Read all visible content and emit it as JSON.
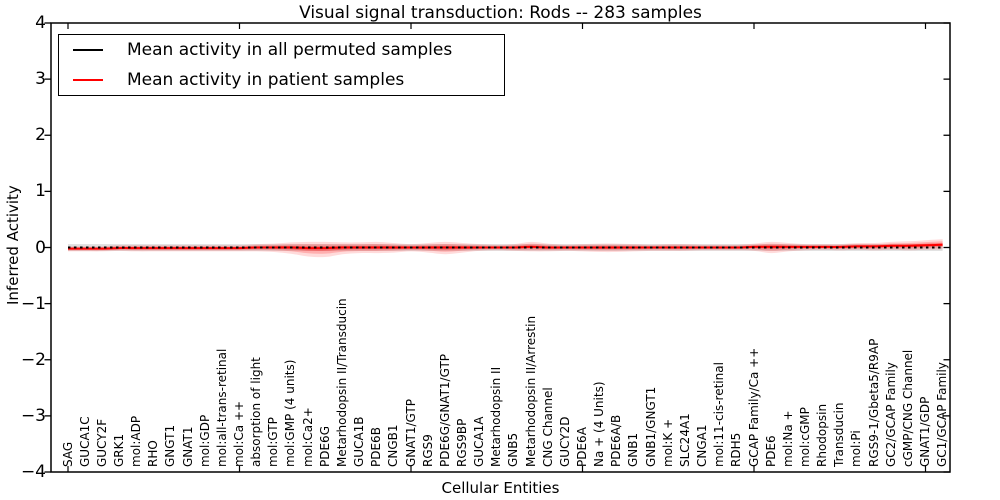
{
  "chart_data": {
    "type": "line",
    "title": "Visual signal transduction: Rods -- 283 samples",
    "xlabel": "Cellular Entities",
    "ylabel": "Inferred Activity",
    "ylim": [
      -4,
      4
    ],
    "yticks": [
      4,
      3,
      2,
      1,
      0,
      -1,
      -2,
      -3,
      -4
    ],
    "ytick_labels": [
      "4",
      "3",
      "2",
      "1",
      "0",
      "−1",
      "−2",
      "−3",
      "−4"
    ],
    "grid": false,
    "legend_position": "upper left",
    "categories": [
      "SAG",
      "GUCA1C",
      "GUCY2F",
      "GRK1",
      "mol:ADP",
      "RHO",
      "GNGT1",
      "GNAT1",
      "mol:GDP",
      "mol:all-trans-retinal",
      "mol:Ca ++",
      "absorption of light",
      "mol:GTP",
      "mol:GMP (4 units)",
      "mol:Ca2+",
      "PDE6G",
      "Metarhodopsin II/Transducin",
      "GUCA1B",
      "PDE6B",
      "CNGB1",
      "GNAT1/GTP",
      "RGS9",
      "PDE6G/GNAT1/GTP",
      "RGS9BP",
      "GUCA1A",
      "Metarhodopsin II",
      "GNB5",
      "Metarhodopsin II/Arrestin",
      "CNG Channel",
      "GUCY2D",
      "PDE6A",
      "Na + (4 Units)",
      "PDE6A/B",
      "GNB1",
      "GNB1/GNGT1",
      "mol:K +",
      "SLC24A1",
      "CNGA1",
      "mol:11-cis-retinal",
      "RDH5",
      "GCAP Family/Ca ++",
      "PDE6",
      "mol:Na +",
      "mol:cGMP",
      "Rhodopsin",
      "Transducin",
      "mol:Pi",
      "RGS9-1/Gbeta5/R9AP",
      "GC2/GCAP Family",
      "cGMP/CNG Channel",
      "GNAT1/GDP",
      "GC1/GCAP Family"
    ],
    "series": [
      {
        "name": "Mean activity in all permuted samples",
        "color": "#000000",
        "band_color": "#000000",
        "band_opacity": 0.13,
        "spread": 0.06,
        "values": [
          0,
          0,
          0,
          0,
          0,
          0,
          0,
          0,
          0,
          0,
          0,
          0,
          0,
          0,
          0,
          0,
          0,
          0,
          0,
          0,
          0,
          0,
          0,
          0,
          0,
          0,
          0,
          0,
          0,
          0,
          0,
          0,
          0,
          0,
          0,
          0,
          0,
          0,
          0,
          0,
          0,
          0,
          0,
          0,
          0,
          0,
          0,
          0,
          0,
          0,
          0,
          0
        ]
      },
      {
        "name": "Mean activity in patient samples",
        "color": "#ff0000",
        "band_color": "#ff0000",
        "band_opacities": [
          0.14,
          0.2,
          0.3
        ],
        "band_scales": [
          1,
          0.62,
          0.32
        ],
        "values": [
          -0.02,
          -0.02,
          -0.02,
          -0.01,
          -0.01,
          -0.01,
          -0.01,
          -0.01,
          -0.01,
          -0.01,
          -0.01,
          0,
          0,
          0,
          -0.01,
          -0.01,
          0,
          0,
          0,
          0,
          0,
          0,
          0,
          0,
          0,
          0,
          0,
          0.01,
          0,
          0,
          0,
          0,
          0,
          0,
          0,
          0,
          0,
          0,
          0,
          0,
          0.01,
          0.01,
          0.01,
          0.01,
          0.01,
          0.01,
          0.02,
          0.02,
          0.03,
          0.03,
          0.04,
          0.05
        ],
        "spread_upper": [
          0.04,
          0.04,
          0.04,
          0.05,
          0.05,
          0.05,
          0.05,
          0.05,
          0.05,
          0.05,
          0.05,
          0.06,
          0.07,
          0.09,
          0.11,
          0.11,
          0.09,
          0.09,
          0.1,
          0.08,
          0.06,
          0.08,
          0.1,
          0.08,
          0.06,
          0.05,
          0.06,
          0.09,
          0.07,
          0.05,
          0.06,
          0.07,
          0.07,
          0.06,
          0.05,
          0.06,
          0.06,
          0.05,
          0.05,
          0.05,
          0.06,
          0.09,
          0.07,
          0.05,
          0.05,
          0.05,
          0.06,
          0.06,
          0.07,
          0.08,
          0.09,
          0.1
        ],
        "spread_lower": [
          0.05,
          0.05,
          0.05,
          0.05,
          0.06,
          0.06,
          0.06,
          0.06,
          0.06,
          0.06,
          0.06,
          0.07,
          0.08,
          0.11,
          0.15,
          0.16,
          0.12,
          0.1,
          0.1,
          0.09,
          0.07,
          0.09,
          0.12,
          0.09,
          0.06,
          0.05,
          0.06,
          0.08,
          0.07,
          0.06,
          0.07,
          0.08,
          0.08,
          0.07,
          0.06,
          0.06,
          0.06,
          0.05,
          0.05,
          0.05,
          0.07,
          0.11,
          0.08,
          0.06,
          0.05,
          0.06,
          0.06,
          0.07,
          0.07,
          0.08,
          0.08,
          0.08
        ]
      }
    ]
  }
}
